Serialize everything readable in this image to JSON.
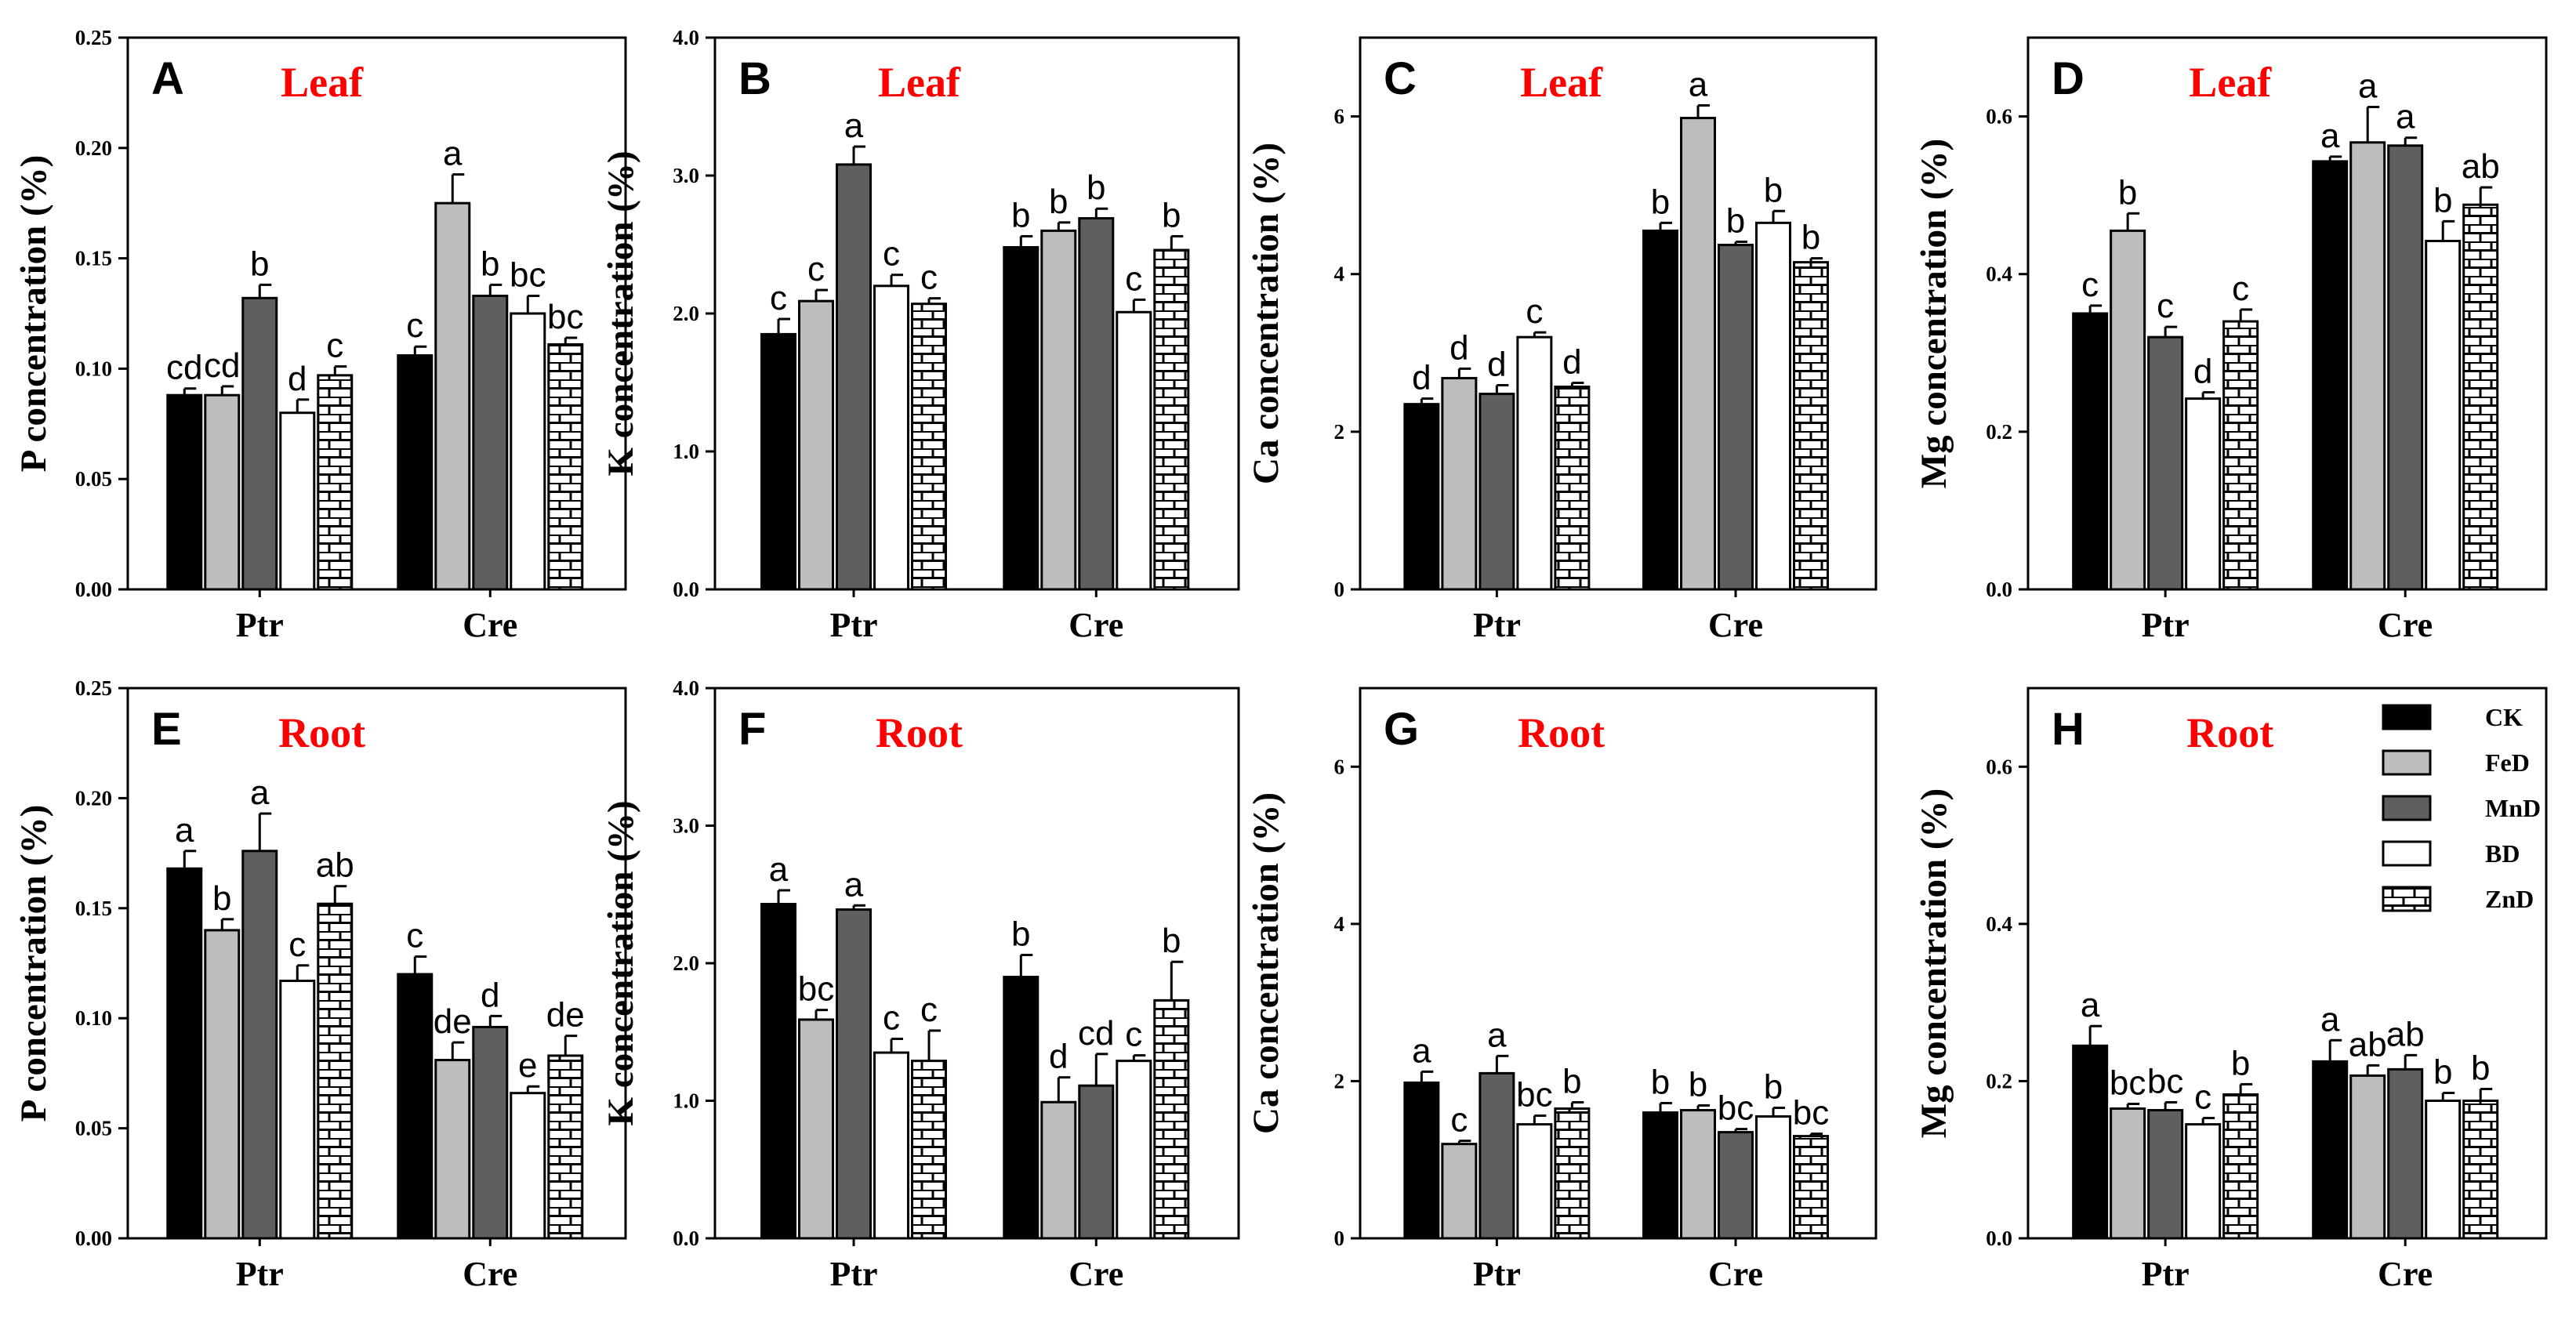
{
  "chart_data": {
    "type": "bar",
    "categories": [
      "Ptr",
      "Cre"
    ],
    "legend": {
      "position": "top-right of panel H",
      "entries": [
        {
          "name": "CK",
          "color": "#000000",
          "pattern": "solid"
        },
        {
          "name": "FeD",
          "color": "#bdbdbd",
          "pattern": "solid"
        },
        {
          "name": "MnD",
          "color": "#5f5f5f",
          "pattern": "solid"
        },
        {
          "name": "BD",
          "color": "#ffffff",
          "pattern": "solid"
        },
        {
          "name": "ZnD",
          "color": "#ffffff",
          "pattern": "brick"
        }
      ]
    },
    "panels": [
      {
        "id": "A",
        "tissue": "Leaf",
        "ylabel": "P concentration (%)",
        "ylim": [
          0,
          0.25
        ],
        "ticks": [
          "0.00",
          "0.05",
          "0.10",
          "0.15",
          "0.20",
          "0.25"
        ],
        "series": [
          {
            "name": "CK",
            "values": [
              0.088,
              0.106
            ],
            "errors": [
              0.003,
              0.004
            ],
            "letters": [
              "cd",
              "c"
            ]
          },
          {
            "name": "FeD",
            "values": [
              0.088,
              0.175
            ],
            "errors": [
              0.004,
              0.013
            ],
            "letters": [
              "cd",
              "a"
            ]
          },
          {
            "name": "MnD",
            "values": [
              0.132,
              0.133
            ],
            "errors": [
              0.006,
              0.005
            ],
            "letters": [
              "b",
              "b"
            ]
          },
          {
            "name": "BD",
            "values": [
              0.08,
              0.125
            ],
            "errors": [
              0.006,
              0.008
            ],
            "letters": [
              "d",
              "bc"
            ]
          },
          {
            "name": "ZnD",
            "values": [
              0.097,
              0.111
            ],
            "errors": [
              0.004,
              0.003
            ],
            "letters": [
              "c",
              "bc"
            ]
          }
        ]
      },
      {
        "id": "B",
        "tissue": "Leaf",
        "ylabel": "K concentration (%)",
        "ylim": [
          0,
          4.0
        ],
        "ticks": [
          "0.0",
          "1.0",
          "2.0",
          "3.0",
          "4.0"
        ],
        "series": [
          {
            "name": "CK",
            "values": [
              1.85,
              2.48
            ],
            "errors": [
              0.11,
              0.08
            ],
            "letters": [
              "c",
              "b"
            ]
          },
          {
            "name": "FeD",
            "values": [
              2.09,
              2.6
            ],
            "errors": [
              0.08,
              0.06
            ],
            "letters": [
              "c",
              "b"
            ]
          },
          {
            "name": "MnD",
            "values": [
              3.08,
              2.69
            ],
            "errors": [
              0.13,
              0.07
            ],
            "letters": [
              "a",
              "b"
            ]
          },
          {
            "name": "BD",
            "values": [
              2.2,
              2.01
            ],
            "errors": [
              0.08,
              0.09
            ],
            "letters": [
              "c",
              "c"
            ]
          },
          {
            "name": "ZnD",
            "values": [
              2.07,
              2.46
            ],
            "errors": [
              0.04,
              0.1
            ],
            "letters": [
              "c",
              "b"
            ]
          }
        ]
      },
      {
        "id": "C",
        "tissue": "Leaf",
        "ylabel": "Ca concentration (%)",
        "ylim": [
          0,
          7.0
        ],
        "ticks": [
          "0",
          "2",
          "4",
          "6"
        ],
        "series": [
          {
            "name": "CK",
            "values": [
              2.35,
              4.55
            ],
            "errors": [
              0.07,
              0.1
            ],
            "letters": [
              "d",
              "b"
            ]
          },
          {
            "name": "FeD",
            "values": [
              2.68,
              5.98
            ],
            "errors": [
              0.12,
              0.16
            ],
            "letters": [
              "d",
              "a"
            ]
          },
          {
            "name": "MnD",
            "values": [
              2.48,
              4.37
            ],
            "errors": [
              0.11,
              0.04
            ],
            "letters": [
              "d",
              "b"
            ]
          },
          {
            "name": "BD",
            "values": [
              3.2,
              4.65
            ],
            "errors": [
              0.06,
              0.15
            ],
            "letters": [
              "c",
              "b"
            ]
          },
          {
            "name": "ZnD",
            "values": [
              2.57,
              4.15
            ],
            "errors": [
              0.05,
              0.05
            ],
            "letters": [
              "d",
              "b"
            ]
          }
        ]
      },
      {
        "id": "D",
        "tissue": "Leaf",
        "ylabel": "Mg concentration (%)",
        "ylim": [
          0,
          0.7
        ],
        "ticks": [
          "0.0",
          "0.2",
          "0.4",
          "0.6"
        ],
        "series": [
          {
            "name": "CK",
            "values": [
              0.35,
              0.543
            ],
            "errors": [
              0.01,
              0.006
            ],
            "letters": [
              "c",
              "a"
            ]
          },
          {
            "name": "FeD",
            "values": [
              0.455,
              0.567
            ],
            "errors": [
              0.022,
              0.045
            ],
            "letters": [
              "b",
              "a"
            ]
          },
          {
            "name": "MnD",
            "values": [
              0.32,
              0.563
            ],
            "errors": [
              0.013,
              0.01
            ],
            "letters": [
              "c",
              "a"
            ]
          },
          {
            "name": "BD",
            "values": [
              0.242,
              0.442
            ],
            "errors": [
              0.008,
              0.025
            ],
            "letters": [
              "d",
              "b"
            ]
          },
          {
            "name": "ZnD",
            "values": [
              0.34,
              0.488
            ],
            "errors": [
              0.015,
              0.022
            ],
            "letters": [
              "c",
              "ab"
            ]
          }
        ]
      },
      {
        "id": "E",
        "tissue": "Root",
        "ylabel": "P concentration (%)",
        "ylim": [
          0,
          0.25
        ],
        "ticks": [
          "0.00",
          "0.05",
          "0.10",
          "0.15",
          "0.20",
          "0.25"
        ],
        "series": [
          {
            "name": "CK",
            "values": [
              0.168,
              0.12
            ],
            "errors": [
              0.008,
              0.008
            ],
            "letters": [
              "a",
              "c"
            ]
          },
          {
            "name": "FeD",
            "values": [
              0.14,
              0.081
            ],
            "errors": [
              0.005,
              0.008
            ],
            "letters": [
              "b",
              "de"
            ]
          },
          {
            "name": "MnD",
            "values": [
              0.176,
              0.096
            ],
            "errors": [
              0.017,
              0.005
            ],
            "letters": [
              "a",
              "d"
            ]
          },
          {
            "name": "BD",
            "values": [
              0.117,
              0.066
            ],
            "errors": [
              0.007,
              0.003
            ],
            "letters": [
              "c",
              "e"
            ]
          },
          {
            "name": "ZnD",
            "values": [
              0.152,
              0.083
            ],
            "errors": [
              0.008,
              0.009
            ],
            "letters": [
              "ab",
              "de"
            ]
          }
        ]
      },
      {
        "id": "F",
        "tissue": "Root",
        "ylabel": "K concentration (%)",
        "ylim": [
          0,
          4.0
        ],
        "ticks": [
          "0.0",
          "1.0",
          "2.0",
          "3.0",
          "4.0"
        ],
        "series": [
          {
            "name": "CK",
            "values": [
              2.43,
              1.9
            ],
            "errors": [
              0.1,
              0.16
            ],
            "letters": [
              "a",
              "b"
            ]
          },
          {
            "name": "FeD",
            "values": [
              1.59,
              0.99
            ],
            "errors": [
              0.07,
              0.18
            ],
            "letters": [
              "bc",
              "d"
            ]
          },
          {
            "name": "MnD",
            "values": [
              2.39,
              1.11
            ],
            "errors": [
              0.03,
              0.23
            ],
            "letters": [
              "a",
              "cd"
            ]
          },
          {
            "name": "BD",
            "values": [
              1.35,
              1.29
            ],
            "errors": [
              0.1,
              0.04
            ],
            "letters": [
              "c",
              "c"
            ]
          },
          {
            "name": "ZnD",
            "values": [
              1.29,
              1.73
            ],
            "errors": [
              0.22,
              0.28
            ],
            "letters": [
              "c",
              "b"
            ]
          }
        ]
      },
      {
        "id": "G",
        "tissue": "Root",
        "ylabel": "Ca concentration (%)",
        "ylim": [
          0,
          7.0
        ],
        "ticks": [
          "0",
          "2",
          "4",
          "6"
        ],
        "series": [
          {
            "name": "CK",
            "values": [
              1.98,
              1.6
            ],
            "errors": [
              0.14,
              0.12
            ],
            "letters": [
              "a",
              "b"
            ]
          },
          {
            "name": "FeD",
            "values": [
              1.2,
              1.63
            ],
            "errors": [
              0.04,
              0.06
            ],
            "letters": [
              "c",
              "b"
            ]
          },
          {
            "name": "MnD",
            "values": [
              2.1,
              1.35
            ],
            "errors": [
              0.22,
              0.04
            ],
            "letters": [
              "a",
              "bc"
            ]
          },
          {
            "name": "BD",
            "values": [
              1.45,
              1.55
            ],
            "errors": [
              0.11,
              0.11
            ],
            "letters": [
              "bc",
              "b"
            ]
          },
          {
            "name": "ZnD",
            "values": [
              1.65,
              1.3
            ],
            "errors": [
              0.08,
              0.03
            ],
            "letters": [
              "b",
              "bc"
            ]
          }
        ]
      },
      {
        "id": "H",
        "tissue": "Root",
        "ylabel": "Mg concentration (%)",
        "ylim": [
          0,
          0.7
        ],
        "ticks": [
          "0.0",
          "0.2",
          "0.4",
          "0.6"
        ],
        "series": [
          {
            "name": "CK",
            "values": [
              0.245,
              0.225
            ],
            "errors": [
              0.025,
              0.027
            ],
            "letters": [
              "a",
              "a"
            ]
          },
          {
            "name": "FeD",
            "values": [
              0.165,
              0.207
            ],
            "errors": [
              0.006,
              0.013
            ],
            "letters": [
              "bc",
              "ab"
            ]
          },
          {
            "name": "MnD",
            "values": [
              0.163,
              0.215
            ],
            "errors": [
              0.01,
              0.018
            ],
            "letters": [
              "bc",
              "ab"
            ]
          },
          {
            "name": "BD",
            "values": [
              0.145,
              0.175
            ],
            "errors": [
              0.008,
              0.01
            ],
            "letters": [
              "c",
              "b"
            ]
          },
          {
            "name": "ZnD",
            "values": [
              0.183,
              0.175
            ],
            "errors": [
              0.013,
              0.015
            ],
            "letters": [
              "b",
              "b"
            ]
          }
        ]
      }
    ]
  }
}
